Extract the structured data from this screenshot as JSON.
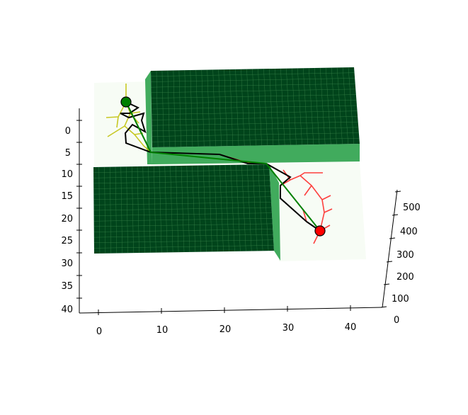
{
  "chart_data": {
    "type": "3d-surface-path",
    "title": "",
    "xlabel": "",
    "ylabel": "",
    "zlabel": "",
    "x_ticks": [
      "0",
      "10",
      "20",
      "30",
      "40"
    ],
    "y_ticks": [
      "0",
      "5",
      "10",
      "15",
      "20",
      "25",
      "30",
      "35",
      "40"
    ],
    "z_ticks": [
      "0",
      "100",
      "200",
      "300",
      "400",
      "500"
    ],
    "grid": false,
    "legend": "none",
    "obstacles": [
      {
        "name": "upper block",
        "color": "#00441b"
      },
      {
        "name": "lower block",
        "color": "#00441b"
      }
    ],
    "start": {
      "x": 4,
      "y": -1,
      "color": "#008000"
    },
    "goal": {
      "x": 35,
      "y": 25,
      "color": "#ff0000"
    },
    "start_tree": {
      "color": "#bfbf00"
    },
    "goal_tree": {
      "color": "#ff0000"
    },
    "raw_path": {
      "color": "#000000"
    },
    "smoothed_path": {
      "color": "#008000"
    },
    "colors": {
      "obstacle_top": "#00441b",
      "obstacle_side": "#41ab5d",
      "floor": "#f7fcf5",
      "grid": "#74c476"
    }
  }
}
